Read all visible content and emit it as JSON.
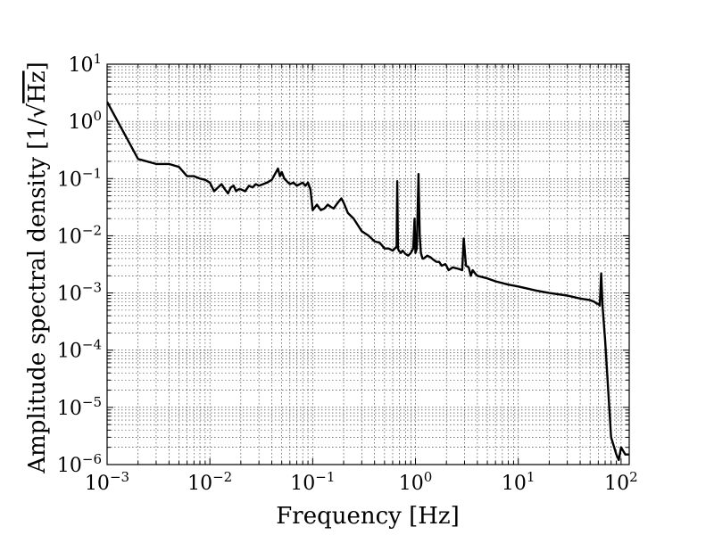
{
  "chart_data": {
    "type": "line",
    "title": "",
    "xlabel": "Frequency [Hz]",
    "ylabel_prefix": "Amplitude spectral density [1/",
    "ylabel_unit": "Hz",
    "ylabel_suffix": "]",
    "xscale": "log",
    "yscale": "log",
    "xlim": [
      0.001,
      120
    ],
    "ylim": [
      1e-06,
      10
    ],
    "grid": true,
    "grid_style": "dotted",
    "line_color": "#000000",
    "x_ticks": [
      {
        "value": 0.001,
        "base": "10",
        "exp": "−3"
      },
      {
        "value": 0.01,
        "base": "10",
        "exp": "−2"
      },
      {
        "value": 0.1,
        "base": "10",
        "exp": "−1"
      },
      {
        "value": 1,
        "base": "10",
        "exp": "0"
      },
      {
        "value": 10,
        "base": "10",
        "exp": "1"
      },
      {
        "value": 100,
        "base": "10",
        "exp": "2"
      }
    ],
    "y_ticks": [
      {
        "value": 1e-06,
        "base": "10",
        "exp": "−6"
      },
      {
        "value": 1e-05,
        "base": "10",
        "exp": "−5"
      },
      {
        "value": 0.0001,
        "base": "10",
        "exp": "−4"
      },
      {
        "value": 0.001,
        "base": "10",
        "exp": "−3"
      },
      {
        "value": 0.01,
        "base": "10",
        "exp": "−2"
      },
      {
        "value": 0.1,
        "base": "10",
        "exp": "−1"
      },
      {
        "value": 1,
        "base": "10",
        "exp": "0"
      },
      {
        "value": 10,
        "base": "10",
        "exp": "1"
      }
    ],
    "series": [
      {
        "x": [
          0.001,
          0.002,
          0.003,
          0.004,
          0.005,
          0.006,
          0.007,
          0.008,
          0.009,
          0.01,
          0.011,
          0.012,
          0.013,
          0.014,
          0.015,
          0.016,
          0.017,
          0.018,
          0.019,
          0.02,
          0.022,
          0.024,
          0.026,
          0.028,
          0.03,
          0.033,
          0.036,
          0.04,
          0.043,
          0.046,
          0.048,
          0.05,
          0.053,
          0.056,
          0.06,
          0.065,
          0.07,
          0.075,
          0.08,
          0.085,
          0.09,
          0.095,
          0.1,
          0.11,
          0.12,
          0.13,
          0.14,
          0.15,
          0.16,
          0.17,
          0.18,
          0.19,
          0.2,
          0.22,
          0.25,
          0.3,
          0.35,
          0.4,
          0.45,
          0.5,
          0.55,
          0.6,
          0.63,
          0.655,
          0.665,
          0.675,
          0.69,
          0.72,
          0.75,
          0.8,
          0.85,
          0.9,
          0.95,
          0.98,
          1.0,
          1.03,
          1.07,
          1.1,
          1.13,
          1.17,
          1.2,
          1.3,
          1.4,
          1.5,
          1.6,
          1.7,
          1.8,
          1.95,
          2.0,
          2.1,
          2.3,
          2.5,
          2.7,
          2.85,
          2.95,
          3.1,
          3.3,
          3.45,
          3.6,
          3.8,
          4.0,
          5.0,
          6.0,
          8.0,
          10.0,
          15.0,
          20.0,
          30.0,
          40.0,
          50.0,
          55.0,
          58.0,
          60.0,
          62.0,
          64.0,
          66.0,
          70.0,
          80.0,
          90.0,
          95.0,
          100.0,
          110.0,
          120.0
        ],
        "y": [
          2.2,
          0.22,
          0.18,
          0.18,
          0.16,
          0.11,
          0.11,
          0.1,
          0.095,
          0.085,
          0.06,
          0.07,
          0.08,
          0.065,
          0.055,
          0.07,
          0.075,
          0.06,
          0.065,
          0.065,
          0.06,
          0.075,
          0.07,
          0.08,
          0.075,
          0.08,
          0.085,
          0.095,
          0.12,
          0.15,
          0.11,
          0.13,
          0.1,
          0.09,
          0.08,
          0.085,
          0.075,
          0.08,
          0.085,
          0.075,
          0.085,
          0.065,
          0.028,
          0.035,
          0.028,
          0.03,
          0.035,
          0.032,
          0.03,
          0.035,
          0.04,
          0.045,
          0.038,
          0.025,
          0.02,
          0.012,
          0.01,
          0.008,
          0.0075,
          0.006,
          0.006,
          0.0055,
          0.006,
          0.0065,
          0.09,
          0.006,
          0.0055,
          0.005,
          0.0055,
          0.0048,
          0.0045,
          0.005,
          0.006,
          0.02,
          0.005,
          0.006,
          0.12,
          0.01,
          0.005,
          0.004,
          0.004,
          0.0045,
          0.0042,
          0.0038,
          0.0035,
          0.0035,
          0.003,
          0.0032,
          0.003,
          0.0025,
          0.0028,
          0.0027,
          0.0026,
          0.0025,
          0.009,
          0.003,
          0.0028,
          0.002,
          0.0025,
          0.0022,
          0.002,
          0.0018,
          0.0016,
          0.0014,
          0.0013,
          0.0011,
          0.001,
          0.0009,
          0.0008,
          0.00075,
          0.0007,
          0.00065,
          0.00065,
          0.0006,
          0.0022,
          0.0006,
          0.00015,
          3e-06,
          1.5e-06,
          1.2e-06,
          2e-06,
          1.5e-06,
          1.5e-06
        ]
      }
    ]
  }
}
